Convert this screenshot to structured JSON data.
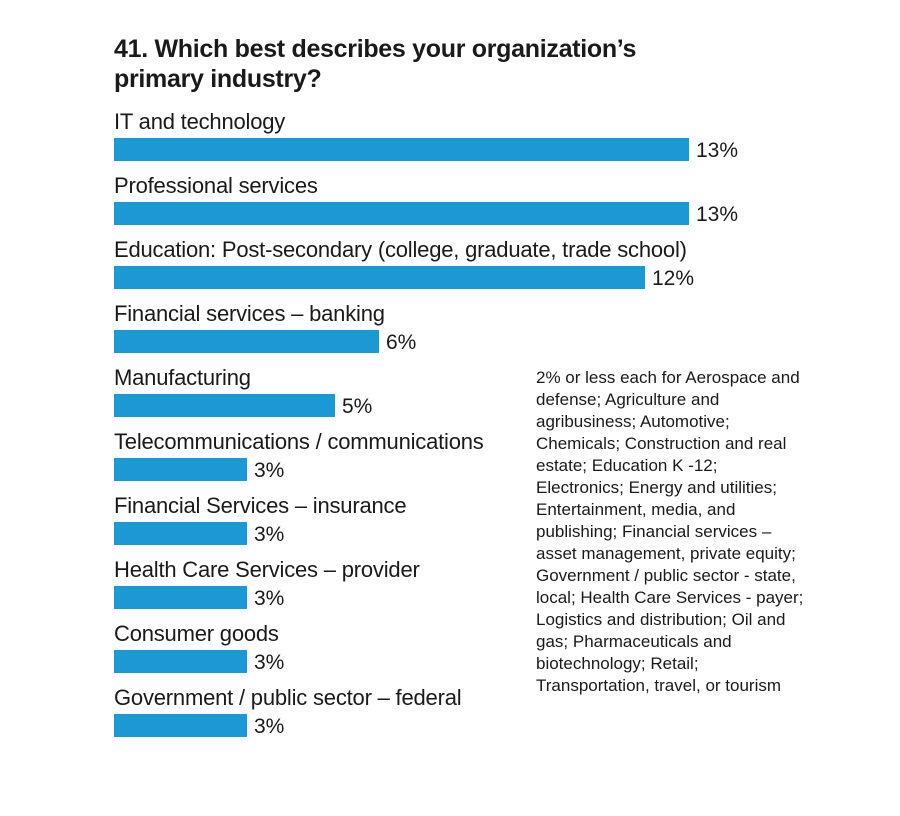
{
  "chart_data": {
    "type": "bar",
    "orientation": "horizontal",
    "title": "41. Which best describes your organization’s primary industry?",
    "categories": [
      "IT and technology",
      "Professional services",
      "Education: Post-secondary (college, graduate, trade school)",
      "Financial services – banking",
      "Manufacturing",
      "Telecommunications / communications",
      "Financial Services – insurance",
      "Health Care Services – provider",
      "Consumer goods",
      "Government / public sector – federal"
    ],
    "values": [
      13,
      13,
      12,
      6,
      5,
      3,
      3,
      3,
      3,
      3
    ],
    "value_labels": [
      "13%",
      "13%",
      "12%",
      "6%",
      "5%",
      "3%",
      "3%",
      "3%",
      "3%",
      "3%"
    ],
    "unit": "%",
    "xlim": [
      0,
      13
    ],
    "bar_color": "#1b99d5",
    "grid": false,
    "note": "2% or less each for Aerospace and defense; Agriculture and agribusiness; Automotive; Chemicals; Construction and real estate; Education K -12; Electronics; Energy and utilities; Entertainment, media, and publishing; Financial services – asset management, private equity; Government / public sector - state, local; Health Care Services - payer; Logistics and distribution; Oil and gas;  Pharmaceuticals and biotechnology; Retail; Transportation, travel, or tourism"
  }
}
